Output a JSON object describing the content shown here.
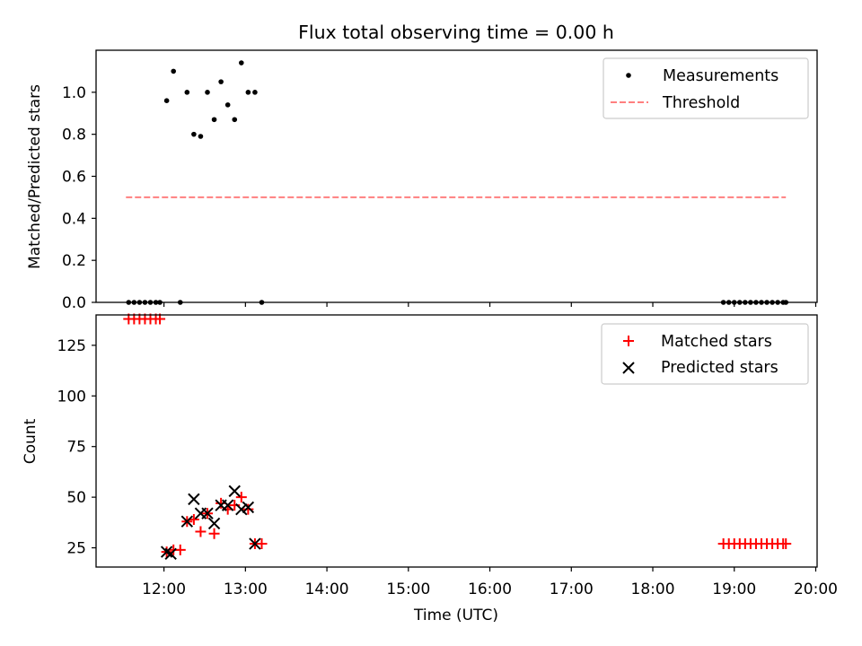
{
  "title": "Flux total observing time = 0.00 h",
  "colors": {
    "measurement": "#000000",
    "threshold": "#ff7f7f",
    "matched": "#ff0000",
    "predicted": "#000000"
  },
  "chart_data": [
    {
      "type": "scatter",
      "ylabel": "Matched/Predicted stars",
      "ylim": [
        0,
        1.2
      ],
      "yticks": [
        "0.0",
        "0.2",
        "0.4",
        "0.6",
        "0.8",
        "1.0"
      ],
      "xlim": [
        "11:10",
        "20:01"
      ],
      "legend_position": "top-right",
      "legend": [
        "Measurements",
        "Threshold"
      ],
      "threshold": {
        "value": 0.5,
        "x": [
          "11:32",
          "19:38"
        ]
      },
      "measurements": [
        [
          "11:34",
          0
        ],
        [
          "11:38",
          0
        ],
        [
          "11:42",
          0
        ],
        [
          "11:46",
          0
        ],
        [
          "11:50",
          0
        ],
        [
          "11:54",
          0
        ],
        [
          "11:57",
          0
        ],
        [
          "12:02",
          0.96
        ],
        [
          "12:07",
          1.1
        ],
        [
          "12:12",
          0
        ],
        [
          "12:17",
          1.0
        ],
        [
          "12:22",
          0.8
        ],
        [
          "12:27",
          0.79
        ],
        [
          "12:32",
          1.0
        ],
        [
          "12:37",
          0.87
        ],
        [
          "12:42",
          1.05
        ],
        [
          "12:47",
          0.94
        ],
        [
          "12:52",
          0.87
        ],
        [
          "12:57",
          1.14
        ],
        [
          "13:02",
          1.0
        ],
        [
          "13:07",
          1.0
        ],
        [
          "13:12",
          0
        ],
        [
          "18:52",
          0
        ],
        [
          "18:56",
          0
        ],
        [
          "19:00",
          0
        ],
        [
          "19:04",
          0
        ],
        [
          "19:08",
          0
        ],
        [
          "19:12",
          0
        ],
        [
          "19:16",
          0
        ],
        [
          "19:20",
          0
        ],
        [
          "19:24",
          0
        ],
        [
          "19:28",
          0
        ],
        [
          "19:32",
          0
        ],
        [
          "19:36",
          0
        ],
        [
          "19:38",
          0
        ]
      ]
    },
    {
      "type": "scatter",
      "xlabel": "Time (UTC)",
      "ylabel": "Count",
      "ylim": [
        15.5,
        140
      ],
      "yticks": [
        "25",
        "50",
        "75",
        "100",
        "125"
      ],
      "xlim": [
        "11:10",
        "20:01"
      ],
      "xticks": [
        "12:00",
        "13:00",
        "14:00",
        "15:00",
        "16:00",
        "17:00",
        "18:00",
        "19:00",
        "20:00"
      ],
      "legend_position": "top-right",
      "legend": [
        "Matched stars",
        "Predicted stars"
      ],
      "matched": [
        [
          "11:34",
          138
        ],
        [
          "11:38",
          138
        ],
        [
          "11:42",
          138
        ],
        [
          "11:46",
          138
        ],
        [
          "11:50",
          138
        ],
        [
          "11:54",
          138
        ],
        [
          "11:57",
          138
        ],
        [
          "12:02",
          23
        ],
        [
          "12:07",
          24
        ],
        [
          "12:12",
          24
        ],
        [
          "12:17",
          38
        ],
        [
          "12:22",
          39
        ],
        [
          "12:27",
          33
        ],
        [
          "12:32",
          42
        ],
        [
          "12:37",
          32
        ],
        [
          "12:42",
          47
        ],
        [
          "12:47",
          44
        ],
        [
          "12:52",
          46
        ],
        [
          "12:57",
          50
        ],
        [
          "13:02",
          44
        ],
        [
          "13:07",
          27
        ],
        [
          "13:12",
          27
        ],
        [
          "18:52",
          27
        ],
        [
          "18:56",
          27
        ],
        [
          "19:00",
          27
        ],
        [
          "19:04",
          27
        ],
        [
          "19:08",
          27
        ],
        [
          "19:12",
          27
        ],
        [
          "19:16",
          27
        ],
        [
          "19:20",
          27
        ],
        [
          "19:24",
          27
        ],
        [
          "19:28",
          27
        ],
        [
          "19:32",
          27
        ],
        [
          "19:36",
          27
        ],
        [
          "19:38",
          27
        ]
      ],
      "predicted": [
        [
          "12:02",
          23
        ],
        [
          "12:05",
          22
        ],
        [
          "12:17",
          38
        ],
        [
          "12:22",
          49
        ],
        [
          "12:27",
          42
        ],
        [
          "12:32",
          42
        ],
        [
          "12:37",
          37
        ],
        [
          "12:42",
          46
        ],
        [
          "12:47",
          46
        ],
        [
          "12:52",
          53
        ],
        [
          "12:57",
          44
        ],
        [
          "13:02",
          45
        ],
        [
          "13:07",
          27
        ]
      ]
    }
  ]
}
